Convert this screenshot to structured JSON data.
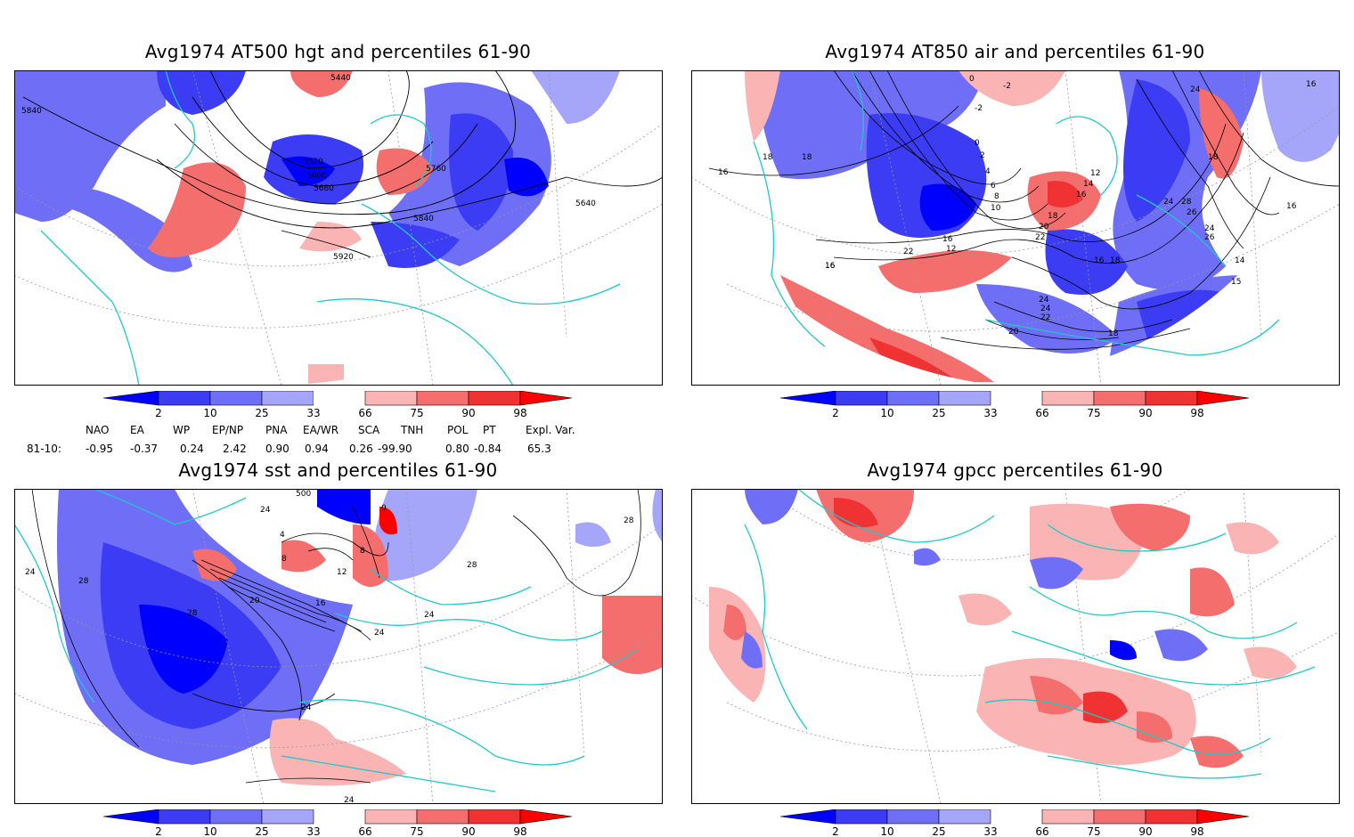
{
  "panels": [
    {
      "id": "hgt",
      "title": "Avg1974 AT500 hgt and percentiles 61-90",
      "contour_labels": [
        "5440",
        "5840",
        "5520",
        "5600",
        "5680",
        "5760",
        "5840",
        "5640",
        "5920"
      ]
    },
    {
      "id": "air",
      "title": "Avg1974 AT850 air and percentiles 61-90",
      "contour_labels": [
        "0",
        "-2",
        "-2",
        "16",
        "16",
        "18",
        "18",
        "0",
        "2",
        "4",
        "6",
        "8",
        "10",
        "12",
        "14",
        "16",
        "18",
        "20",
        "22",
        "24",
        "26",
        "28",
        "26",
        "24",
        "22",
        "16",
        "16",
        "16",
        "12",
        "14",
        "18",
        "24",
        "24",
        "22",
        "20",
        "18",
        "16",
        "16",
        "24",
        "15",
        "18"
      ]
    },
    {
      "id": "sst",
      "title": "Avg1974 sst and percentiles 61-90",
      "contour_labels": [
        "500",
        "24",
        "24",
        "28",
        "4",
        "8",
        "12",
        "20",
        "16",
        "28",
        "24",
        "24",
        "28",
        "28",
        "24",
        "24",
        "0",
        "8"
      ]
    },
    {
      "id": "gpcc",
      "title": "Avg1974 gpcc percentiles 61-90",
      "contour_labels": []
    }
  ],
  "colorbar": {
    "ticks": [
      "2",
      "10",
      "25",
      "33",
      "66",
      "75",
      "90",
      "98"
    ],
    "colors": {
      "b1": "#0000ff",
      "b2": "#3c3cf5",
      "b3": "#6e6ef7",
      "b4": "#a5a5fa",
      "white": "#ffffff",
      "r1": "#fab4b4",
      "r2": "#f56e6e",
      "r3": "#f03232",
      "r4": "#ff0000"
    }
  },
  "indices": {
    "headers": [
      "NAO",
      "EA",
      "WP",
      "EP/NP",
      "PNA",
      "EA/WR",
      "SCA",
      "TNH",
      "POL",
      "PT",
      "Expl. Var."
    ],
    "row_label": "81-10:",
    "values": [
      "-0.95",
      "-0.37",
      "0.24",
      "2.42",
      "0.90",
      "0.94",
      "0.26",
      "-99.90",
      "0.80",
      "-0.84",
      "65.3"
    ]
  },
  "colors": {
    "coast": "#20c8c8",
    "grid": "#999999",
    "frame": "#000000"
  }
}
